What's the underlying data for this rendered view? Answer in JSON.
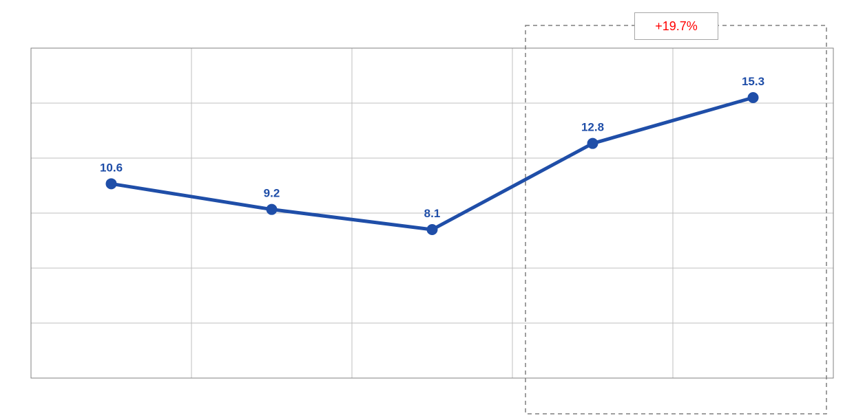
{
  "chart_data": {
    "type": "line",
    "title": "",
    "x": [
      1,
      2,
      3,
      4,
      5
    ],
    "values": [
      10.6,
      9.2,
      8.1,
      12.8,
      15.3
    ],
    "point_labels": [
      "10.6",
      "9.2",
      "8.1",
      "12.8",
      "15.3"
    ],
    "ylim": [
      0,
      18
    ],
    "y_gridline_step": 3,
    "grid": true,
    "legend": "none",
    "line_color": "#1F4EA8",
    "label_color": "#1F4EA8",
    "grid_color": "#BFBFBF",
    "plot_border_color": "#808080",
    "annotation": {
      "text": "+19.7%",
      "text_color": "#FF0000",
      "box_fill": "#FFFFFF",
      "box_border_color": "#A6A6A6",
      "highlight_range": [
        3,
        4
      ],
      "highlight_border_color": "#7F7F7F"
    }
  }
}
